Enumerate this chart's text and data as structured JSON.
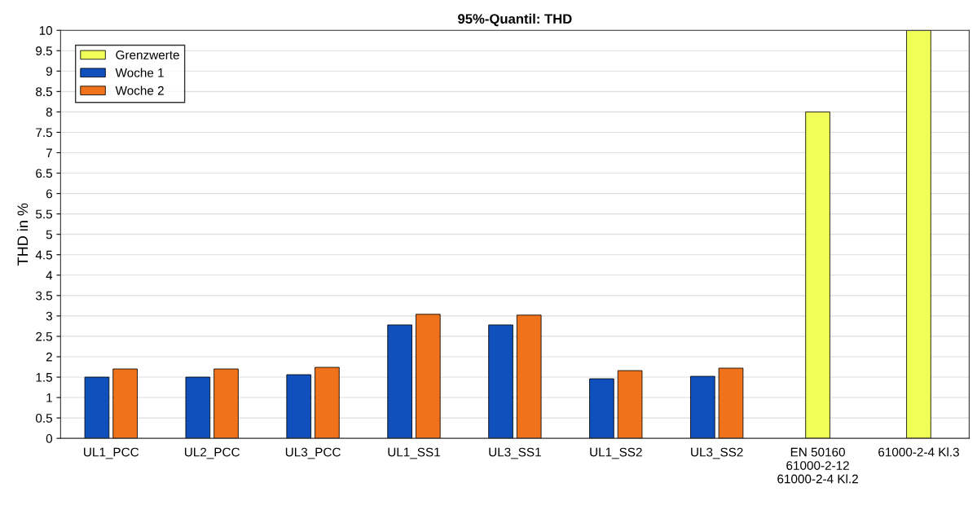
{
  "chart_data": {
    "type": "bar",
    "title": "95%-Quantil: THD",
    "ylabel": "THD in %",
    "categories": [
      "UL1_PCC",
      "UL2_PCC",
      "UL3_PCC",
      "UL1_SS1",
      "UL3_SS1",
      "UL1_SS2",
      "UL3_SS2",
      "EN 50160\n61000-2-12\n61000-2-4 Kl.2",
      "61000-2-4 Kl.3"
    ],
    "series": [
      {
        "name": "Grenzwerte",
        "color": "#f0ff58",
        "values": [
          null,
          null,
          null,
          null,
          null,
          null,
          null,
          8,
          10
        ]
      },
      {
        "name": "Woche 1",
        "color": "#0f50bc",
        "values": [
          1.5,
          1.5,
          1.56,
          2.78,
          2.78,
          1.46,
          1.52,
          null,
          null
        ]
      },
      {
        "name": "Woche 2",
        "color": "#f0731c",
        "values": [
          1.7,
          1.7,
          1.74,
          3.04,
          3.02,
          1.66,
          1.72,
          null,
          null
        ]
      }
    ],
    "ylim": [
      0,
      10
    ],
    "yticks": [
      0,
      0.5,
      1,
      1.5,
      2,
      2.5,
      3,
      3.5,
      4,
      4.5,
      5,
      5.5,
      6,
      6.5,
      7,
      7.5,
      8,
      8.5,
      9,
      9.5,
      10
    ],
    "grid": "y",
    "legend": "top left"
  }
}
